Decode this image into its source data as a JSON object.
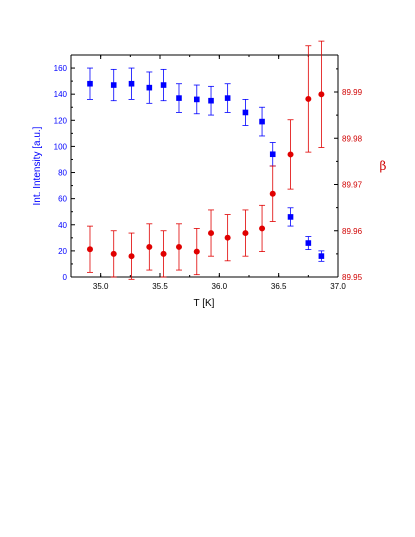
{
  "chart_data": {
    "type": "scatter",
    "xlabel": "T [K]",
    "ylabel_left": "Int. Intensity [a.u.]",
    "ylabel_right": "β",
    "xlim": [
      34.75,
      37.0
    ],
    "ylim_left": [
      0,
      170
    ],
    "ylim_right": [
      89.95,
      89.998
    ],
    "x_ticks": [
      "35.0",
      "35.5",
      "36.0",
      "36.5",
      "37.0"
    ],
    "x_tick_values": [
      35.0,
      35.5,
      36.0,
      36.5,
      37.0
    ],
    "y_left_ticks": [
      "0",
      "20",
      "40",
      "60",
      "80",
      "100",
      "120",
      "140",
      "160"
    ],
    "y_left_tick_values": [
      0,
      20,
      40,
      60,
      80,
      100,
      120,
      140,
      160
    ],
    "y_right_ticks": [
      "89.95",
      "89.96",
      "89.97",
      "89.98",
      "89.99"
    ],
    "y_right_tick_values": [
      89.95,
      89.96,
      89.97,
      89.98,
      89.99
    ],
    "grid": false,
    "series": [
      {
        "axis": "left",
        "marker": "square",
        "color": "#0000ff",
        "points": [
          {
            "x": 34.91,
            "y": 148,
            "err": 12
          },
          {
            "x": 35.11,
            "y": 147,
            "err": 12
          },
          {
            "x": 35.26,
            "y": 148,
            "err": 12
          },
          {
            "x": 35.41,
            "y": 145,
            "err": 12
          },
          {
            "x": 35.53,
            "y": 147,
            "err": 12
          },
          {
            "x": 35.66,
            "y": 137,
            "err": 11
          },
          {
            "x": 35.81,
            "y": 136,
            "err": 11
          },
          {
            "x": 35.93,
            "y": 135,
            "err": 11
          },
          {
            "x": 36.07,
            "y": 137,
            "err": 11
          },
          {
            "x": 36.22,
            "y": 126,
            "err": 10
          },
          {
            "x": 36.36,
            "y": 119,
            "err": 11
          },
          {
            "x": 36.45,
            "y": 94,
            "err": 9
          },
          {
            "x": 36.6,
            "y": 46,
            "err": 7
          },
          {
            "x": 36.75,
            "y": 26,
            "err": 5
          },
          {
            "x": 36.86,
            "y": 16,
            "err": 4
          }
        ]
      },
      {
        "axis": "right",
        "marker": "circle",
        "color": "#e00000",
        "points": [
          {
            "x": 34.91,
            "y": 89.956,
            "err": 0.005
          },
          {
            "x": 35.11,
            "y": 89.955,
            "err": 0.005
          },
          {
            "x": 35.26,
            "y": 89.9545,
            "err": 0.005
          },
          {
            "x": 35.41,
            "y": 89.9565,
            "err": 0.005
          },
          {
            "x": 35.53,
            "y": 89.955,
            "err": 0.005
          },
          {
            "x": 35.66,
            "y": 89.9565,
            "err": 0.005
          },
          {
            "x": 35.81,
            "y": 89.9555,
            "err": 0.005
          },
          {
            "x": 35.93,
            "y": 89.9595,
            "err": 0.005
          },
          {
            "x": 36.07,
            "y": 89.9585,
            "err": 0.005
          },
          {
            "x": 36.22,
            "y": 89.9595,
            "err": 0.005
          },
          {
            "x": 36.36,
            "y": 89.9605,
            "err": 0.005
          },
          {
            "x": 36.45,
            "y": 89.968,
            "err": 0.006
          },
          {
            "x": 36.6,
            "y": 89.9765,
            "err": 0.0075
          },
          {
            "x": 36.75,
            "y": 89.9885,
            "err": 0.0115
          },
          {
            "x": 36.86,
            "y": 89.9895,
            "err": 0.0115
          }
        ]
      }
    ]
  }
}
